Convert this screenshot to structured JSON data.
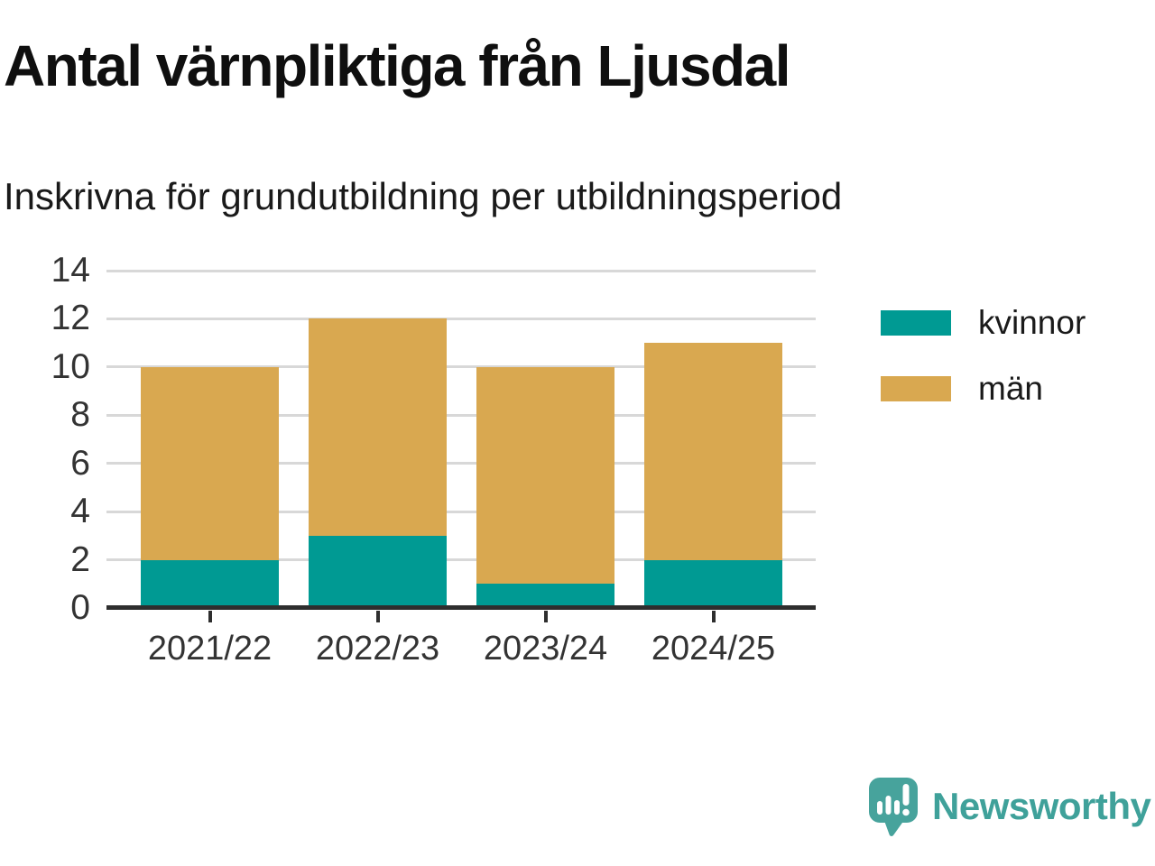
{
  "chart": {
    "title": "Antal värnpliktiga från Ljusdal",
    "subtitle": "Inskrivna för grundutbildning per utbildningsperiod"
  },
  "chart_data": {
    "type": "bar",
    "stacked": true,
    "title": "Antal värnpliktiga från Ljusdal",
    "subtitle": "Inskrivna för grundutbildning per utbildningsperiod",
    "categories": [
      "2021/22",
      "2022/23",
      "2023/24",
      "2024/25"
    ],
    "series": [
      {
        "name": "kvinnor",
        "color": "#009a93",
        "values": [
          2,
          3,
          1,
          2
        ]
      },
      {
        "name": "män",
        "color": "#d9a850",
        "values": [
          8,
          9,
          9,
          9
        ]
      }
    ],
    "totals": [
      10,
      12,
      10,
      11
    ],
    "xlabel": "",
    "ylabel": "",
    "ylim": [
      0,
      14
    ],
    "yticks": [
      0,
      2,
      4,
      6,
      8,
      10,
      12,
      14
    ],
    "grid": true,
    "legend_position": "right",
    "colors": {
      "gridline": "#d8d8d8",
      "axis": "#2e2e2e",
      "tick_label": "#333333"
    }
  },
  "branding": {
    "logo_text": "Newsworthy",
    "logo_color": "#3fa19a",
    "icon_color": "#47a39c"
  }
}
